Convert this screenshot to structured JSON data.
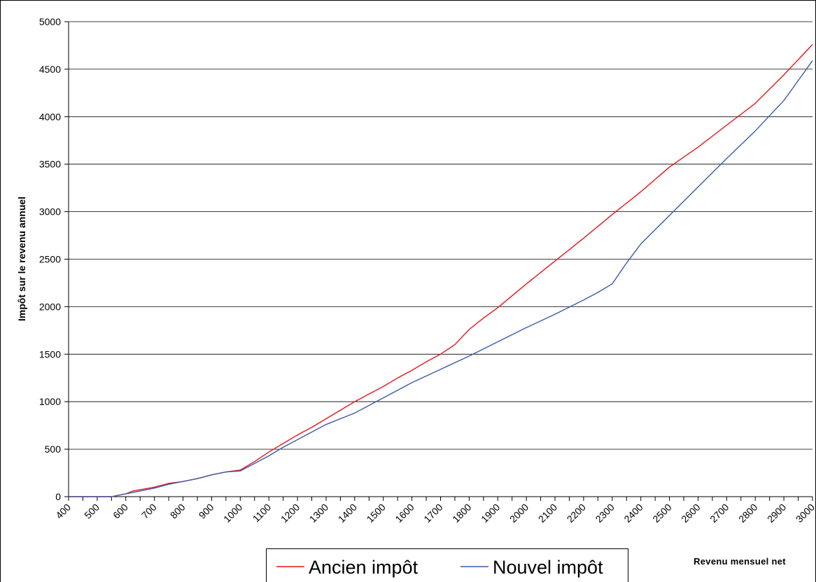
{
  "chart_data": {
    "type": "line",
    "xlabel": "Revenu mensuel net",
    "ylabel": "Impôt sur le revenu annuel",
    "xlim": [
      400,
      3000
    ],
    "ylim": [
      0,
      5000
    ],
    "x_ticks": [
      400,
      500,
      600,
      700,
      800,
      900,
      1000,
      1100,
      1200,
      1300,
      1400,
      1500,
      1600,
      1700,
      1800,
      1900,
      2000,
      2100,
      2200,
      2300,
      2400,
      2500,
      2600,
      2700,
      2800,
      2900,
      3000
    ],
    "y_ticks": [
      0,
      500,
      1000,
      1500,
      2000,
      2500,
      3000,
      3500,
      4000,
      4500,
      5000
    ],
    "grid": "horizontal",
    "legend_position": "bottom-center",
    "series": [
      {
        "name": "Ancien impôt",
        "color": "#e8141c",
        "points": [
          [
            400,
            0
          ],
          [
            500,
            0
          ],
          [
            550,
            0
          ],
          [
            600,
            30
          ],
          [
            625,
            60
          ],
          [
            700,
            100
          ],
          [
            750,
            140
          ],
          [
            800,
            160
          ],
          [
            850,
            190
          ],
          [
            900,
            230
          ],
          [
            950,
            260
          ],
          [
            1000,
            280
          ],
          [
            1050,
            370
          ],
          [
            1100,
            470
          ],
          [
            1150,
            560
          ],
          [
            1200,
            650
          ],
          [
            1250,
            730
          ],
          [
            1300,
            820
          ],
          [
            1350,
            910
          ],
          [
            1400,
            1000
          ],
          [
            1450,
            1080
          ],
          [
            1500,
            1160
          ],
          [
            1550,
            1250
          ],
          [
            1600,
            1330
          ],
          [
            1650,
            1420
          ],
          [
            1700,
            1500
          ],
          [
            1750,
            1600
          ],
          [
            1800,
            1760
          ],
          [
            1850,
            1880
          ],
          [
            1900,
            1990
          ],
          [
            2000,
            2240
          ],
          [
            2100,
            2480
          ],
          [
            2200,
            2720
          ],
          [
            2300,
            2970
          ],
          [
            2400,
            3210
          ],
          [
            2500,
            3470
          ],
          [
            2600,
            3680
          ],
          [
            2700,
            3910
          ],
          [
            2800,
            4140
          ],
          [
            2900,
            4440
          ],
          [
            3000,
            4760
          ]
        ]
      },
      {
        "name": "Nouvel impôt",
        "color": "#3b5ba8",
        "points": [
          [
            400,
            0
          ],
          [
            500,
            0
          ],
          [
            550,
            0
          ],
          [
            600,
            30
          ],
          [
            625,
            45
          ],
          [
            700,
            90
          ],
          [
            750,
            130
          ],
          [
            800,
            160
          ],
          [
            850,
            190
          ],
          [
            900,
            230
          ],
          [
            950,
            260
          ],
          [
            1000,
            270
          ],
          [
            1050,
            350
          ],
          [
            1100,
            430
          ],
          [
            1150,
            520
          ],
          [
            1200,
            600
          ],
          [
            1300,
            760
          ],
          [
            1400,
            880
          ],
          [
            1450,
            960
          ],
          [
            1500,
            1040
          ],
          [
            1600,
            1200
          ],
          [
            1700,
            1340
          ],
          [
            1800,
            1480
          ],
          [
            1900,
            1630
          ],
          [
            2000,
            1780
          ],
          [
            2100,
            1920
          ],
          [
            2200,
            2070
          ],
          [
            2250,
            2150
          ],
          [
            2300,
            2240
          ],
          [
            2350,
            2460
          ],
          [
            2400,
            2660
          ],
          [
            2500,
            2960
          ],
          [
            2600,
            3260
          ],
          [
            2700,
            3560
          ],
          [
            2800,
            3850
          ],
          [
            2900,
            4170
          ],
          [
            3000,
            4590
          ]
        ]
      }
    ]
  }
}
